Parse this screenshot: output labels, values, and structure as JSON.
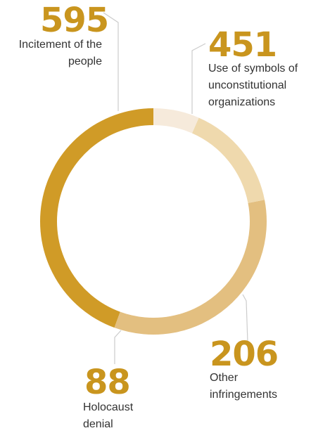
{
  "chart_data": {
    "type": "pie",
    "variant": "donut",
    "slices": [
      {
        "label": "Incitement of the\npeople",
        "value": 595,
        "value_label": "595",
        "color": "#d09b27"
      },
      {
        "label": "Use of symbols of\nunconstitutional\norganizations",
        "value": 451,
        "value_label": "451",
        "color": "#e3bf80"
      },
      {
        "label": "Other\ninfringements",
        "value": 206,
        "value_label": "206",
        "color": "#efd9ad"
      },
      {
        "label": "Holocaust\ndenial",
        "value": 88,
        "value_label": "88",
        "color": "#f6eadb"
      }
    ],
    "colors": {
      "number": "#c9951e",
      "label": "#333333",
      "leader": "#cccccc"
    }
  }
}
